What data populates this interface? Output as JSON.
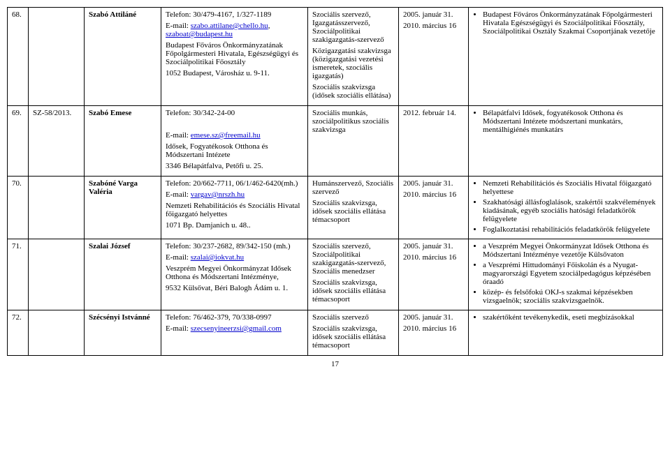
{
  "page_number": "17",
  "rows": [
    {
      "num": "68.",
      "ref": "",
      "name": "Szabó Attiláné",
      "contact": {
        "phone": "Telefon: 30/479-4167, 1/327-1189",
        "email_label": "E-mail: ",
        "email1": "szabo.attilane@chello.hu",
        "email_sep": ", ",
        "email2": "szaboat@budapest.hu",
        "org1": "Budapest Főváros Önkormányzatának Főpolgármesteri Hivatala, Egészségügyi és Szociálpolitikai Főosztály",
        "addr": "1052 Budapest, Városház u. 9-11."
      },
      "qual": {
        "q1": "Szociális szervező, Igazgatásszervező, Szociálpolitikai szakigazgatás-szervező",
        "q2": "Közigazgatási szakvizsga (közigazgatási vezetési ismeretek, szociális igazgatás)",
        "q3": "Szociális szakvizsga (idősek szociális ellátása)"
      },
      "date": {
        "d1": "2005. január 31.",
        "d2": "2010. március 16"
      },
      "notes": {
        "n1": "Budapest Főváros Önkormányzatának Főpolgármesteri Hivatala Egészségügyi és Szociálpolitikai Főosztály, Szociálpolitikai Osztály Szakmai Csoportjának vezetője"
      }
    },
    {
      "num": "69.",
      "ref": "SZ-58/2013.",
      "name": "Szabó Emese",
      "contact": {
        "phone": "Telefon: 30/342-24-00",
        "email_label": "E-mail: ",
        "email1": "emese.sz@freemail.hu",
        "org1": "Idősek, Fogyatékosok Otthona és Módszertani Intézete",
        "addr": "3346 Bélapátfalva, Petőfi u. 25."
      },
      "qual": {
        "q1": "Szociális munkás, szociálpolitikus szociális szakvizsga"
      },
      "date": {
        "d1": "2012. február 14."
      },
      "notes": {
        "n1": "Bélapátfalvi Idősek, fogyatékosok Otthona és Módszertani Intézete módszertani munkatárs, mentálhigiénés munkatárs"
      }
    },
    {
      "num": "70.",
      "ref": "",
      "name": "Szabóné Varga Valéria",
      "contact": {
        "phone": "Telefon: 20/662-7711, 06/1/462-6420(mh.)",
        "email_label": "E-mail: ",
        "email1": "vargav@nrszh.hu",
        "org1": "Nemzeti Rehabilitációs és Szociális Hivatal főigazgató helyettes",
        "addr": "1071 Bp. Damjanich u. 48.."
      },
      "qual": {
        "q1": "Humánszervező, Szociális szervező",
        "q2": "Szociális szakvizsga, idősek szociális ellátása témacsoport"
      },
      "date": {
        "d1": "2005. január 31.",
        "d2": "2010. március 16"
      },
      "notes": {
        "n1": "Nemzeti Rehabilitációs és Szociális Hivatal főigazgató helyettese",
        "n2": "Szakhatósági állásfoglalások, szakértői szakvélemények kiadásának, egyéb szociális hatósági feladatkörök felügyelete",
        "n3": "Foglalkoztatási rehabilitációs feladatkörök felügyelete"
      }
    },
    {
      "num": "71.",
      "ref": "",
      "name": "Szalai József",
      "contact": {
        "phone": "Telefon: 30/237-2682, 89/342-150 (mh.)",
        "email_label": "E-mail: ",
        "email1": "szalai@iokvat.hu",
        "org1": "Veszprém Megyei Önkormányzat Idősek Otthona és Módszertani Intézménye,",
        "addr": "9532 Külsővat, Béri Balogh Ádám u. 1."
      },
      "qual": {
        "q1": "Szociális szervező, Szociálpolitikai szakigazgatás-szervező, Szociális menedzser",
        "q2": "Szociális szakvizsga, idősek szociális ellátása témacsoport"
      },
      "date": {
        "d1": "2005. január 31.",
        "d2": "2010. március 16"
      },
      "notes": {
        "n1": "a Veszprém Megyei Önkormányzat Idősek Otthona és Módszertani Intézménye vezetője Külsővaton",
        "n2": "a Veszprémi Hittudományi Főiskolán és a Nyugat-magyarországi Egyetem szociálpedagógus képzésében óraadó",
        "n3": "közép- és felsőfokú OKJ-s szakmai képzésekben vizsgaelnök; szociális szakvizsgaelnök."
      }
    },
    {
      "num": "72.",
      "ref": "",
      "name": "Szécsényi Istvánné",
      "contact": {
        "phone": "Telefon: 76/462-379, 70/338-0997",
        "email_label": "E-mail: ",
        "email1": "szecsenyineerzsi@gmail.com"
      },
      "qual": {
        "q1": "Szociális szervező",
        "q2": "Szociális szakvizsga, idősek szociális ellátása témacsoport"
      },
      "date": {
        "d1": "2005. január 31.",
        "d2": "2010. március 16"
      },
      "notes": {
        "n1": "szakértőként tevékenykedik, eseti megbízásokkal"
      }
    }
  ]
}
